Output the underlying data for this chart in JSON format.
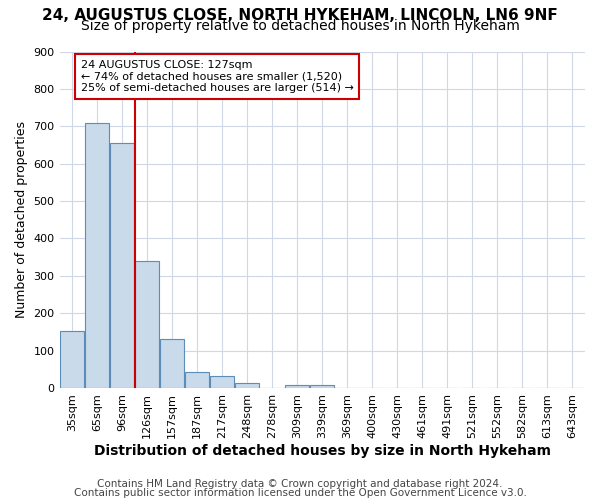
{
  "title1": "24, AUGUSTUS CLOSE, NORTH HYKEHAM, LINCOLN, LN6 9NF",
  "title2": "Size of property relative to detached houses in North Hykeham",
  "xlabel": "Distribution of detached houses by size in North Hykeham",
  "ylabel": "Number of detached properties",
  "footer1": "Contains HM Land Registry data © Crown copyright and database right 2024.",
  "footer2": "Contains public sector information licensed under the Open Government Licence v3.0.",
  "categories": [
    "35sqm",
    "65sqm",
    "96sqm",
    "126sqm",
    "157sqm",
    "187sqm",
    "217sqm",
    "248sqm",
    "278sqm",
    "309sqm",
    "339sqm",
    "369sqm",
    "400sqm",
    "430sqm",
    "461sqm",
    "491sqm",
    "521sqm",
    "552sqm",
    "582sqm",
    "613sqm",
    "643sqm"
  ],
  "values": [
    152,
    710,
    655,
    340,
    130,
    43,
    31,
    12,
    0,
    8,
    8,
    0,
    0,
    0,
    0,
    0,
    0,
    0,
    0,
    0,
    0
  ],
  "bar_color": "#c9daea",
  "bar_edge_color": "#5b8db8",
  "bar_width": 0.95,
  "vline_x_index": 3,
  "vline_color": "#cc0000",
  "ann_line1": "24 AUGUSTUS CLOSE: 127sqm",
  "ann_line2": "← 74% of detached houses are smaller (1,520)",
  "ann_line3": "25% of semi-detached houses are larger (514) →",
  "annotation_box_color": "#ffffff",
  "annotation_box_edgecolor": "#cc0000",
  "ylim": [
    0,
    900
  ],
  "yticks": [
    0,
    100,
    200,
    300,
    400,
    500,
    600,
    700,
    800,
    900
  ],
  "bg_color": "#ffffff",
  "axes_bg_color": "#ffffff",
  "grid_color": "#d0d8e8",
  "title1_fontsize": 11,
  "title2_fontsize": 10,
  "xlabel_fontsize": 10,
  "ylabel_fontsize": 9,
  "tick_fontsize": 8,
  "footer_fontsize": 7.5
}
